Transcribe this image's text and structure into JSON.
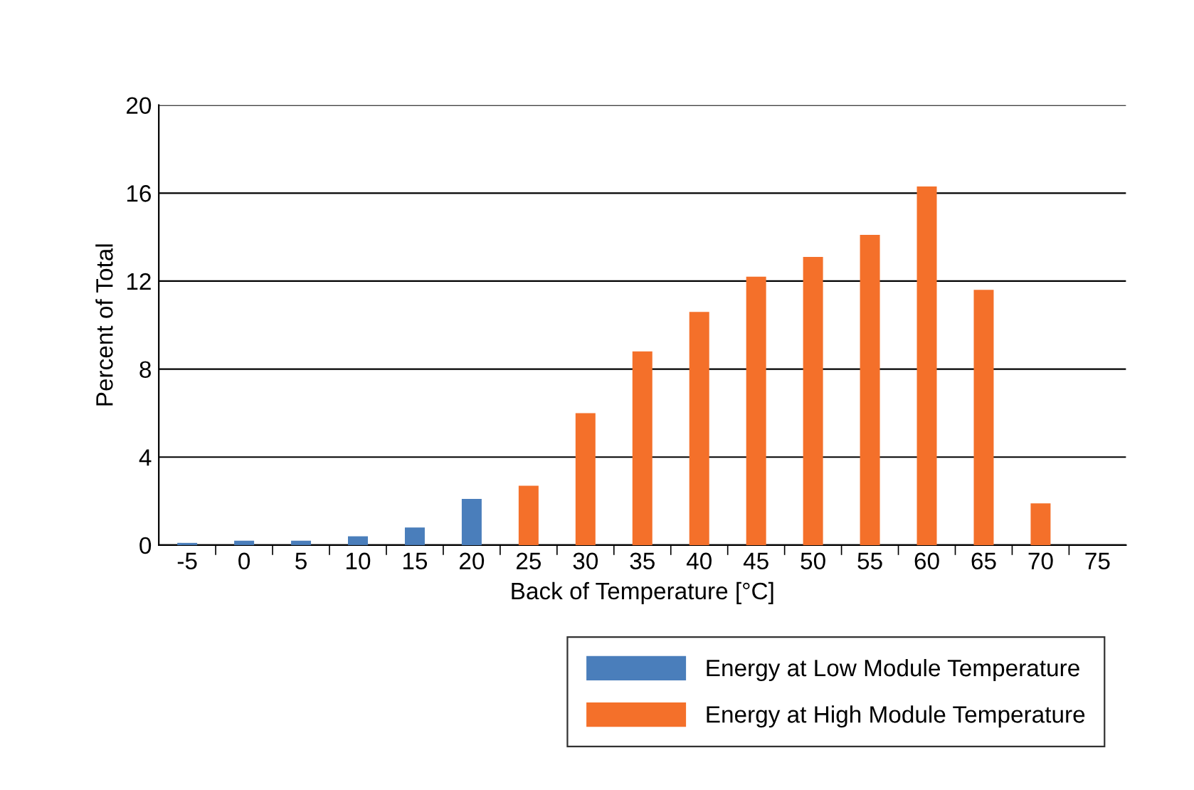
{
  "chart_data": {
    "type": "bar",
    "xlabel": "Back of Temperature [°C]",
    "ylabel": "Percent of Total",
    "categories": [
      "-5",
      "0",
      "5",
      "10",
      "15",
      "20",
      "25",
      "30",
      "35",
      "40",
      "45",
      "50",
      "55",
      "60",
      "65",
      "70",
      "75"
    ],
    "series": [
      {
        "name": "Energy at Low Module Temperature",
        "color": "#4a7ebb",
        "values": [
          0.1,
          0.2,
          0.2,
          0.4,
          0.8,
          2.1,
          null,
          null,
          null,
          null,
          null,
          null,
          null,
          null,
          null,
          null,
          null
        ]
      },
      {
        "name": "Energy at High Module Temperature",
        "color": "#f4702a",
        "values": [
          null,
          null,
          null,
          null,
          null,
          null,
          2.7,
          6.0,
          8.8,
          10.6,
          12.2,
          13.1,
          14.1,
          16.3,
          11.6,
          1.9,
          null
        ]
      }
    ],
    "ylim": [
      0,
      20
    ],
    "yticks": [
      0,
      4,
      8,
      12,
      16,
      20
    ],
    "grid": "y",
    "legend": "bottom right"
  }
}
